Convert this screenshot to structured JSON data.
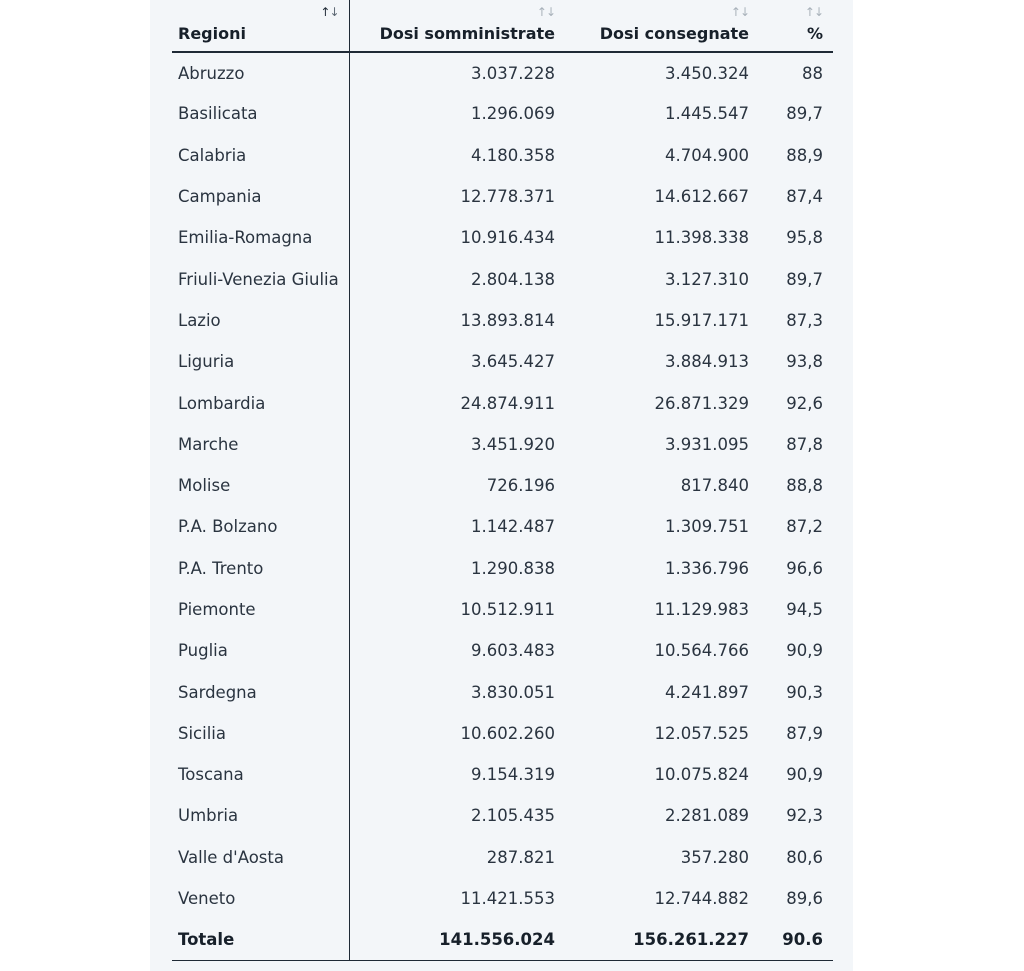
{
  "table": {
    "headers": {
      "region": "Regioni",
      "administered": "Dosi somministrate",
      "delivered": "Dosi consegnate",
      "percent": "%"
    },
    "sort_icon": "↑↓",
    "rows": [
      {
        "region": "Abruzzo",
        "administered": "3.037.228",
        "delivered": "3.450.324",
        "percent": "88"
      },
      {
        "region": "Basilicata",
        "administered": "1.296.069",
        "delivered": "1.445.547",
        "percent": "89,7"
      },
      {
        "region": "Calabria",
        "administered": "4.180.358",
        "delivered": "4.704.900",
        "percent": "88,9"
      },
      {
        "region": "Campania",
        "administered": "12.778.371",
        "delivered": "14.612.667",
        "percent": "87,4"
      },
      {
        "region": "Emilia-Romagna",
        "administered": "10.916.434",
        "delivered": "11.398.338",
        "percent": "95,8"
      },
      {
        "region": "Friuli-Venezia Giulia",
        "administered": "2.804.138",
        "delivered": "3.127.310",
        "percent": "89,7"
      },
      {
        "region": "Lazio",
        "administered": "13.893.814",
        "delivered": "15.917.171",
        "percent": "87,3"
      },
      {
        "region": "Liguria",
        "administered": "3.645.427",
        "delivered": "3.884.913",
        "percent": "93,8"
      },
      {
        "region": "Lombardia",
        "administered": "24.874.911",
        "delivered": "26.871.329",
        "percent": "92,6"
      },
      {
        "region": "Marche",
        "administered": "3.451.920",
        "delivered": "3.931.095",
        "percent": "87,8"
      },
      {
        "region": "Molise",
        "administered": "726.196",
        "delivered": "817.840",
        "percent": "88,8"
      },
      {
        "region": "P.A. Bolzano",
        "administered": "1.142.487",
        "delivered": "1.309.751",
        "percent": "87,2"
      },
      {
        "region": "P.A. Trento",
        "administered": "1.290.838",
        "delivered": "1.336.796",
        "percent": "96,6"
      },
      {
        "region": "Piemonte",
        "administered": "10.512.911",
        "delivered": "11.129.983",
        "percent": "94,5"
      },
      {
        "region": "Puglia",
        "administered": "9.603.483",
        "delivered": "10.564.766",
        "percent": "90,9"
      },
      {
        "region": "Sardegna",
        "administered": "3.830.051",
        "delivered": "4.241.897",
        "percent": "90,3"
      },
      {
        "region": "Sicilia",
        "administered": "10.602.260",
        "delivered": "12.057.525",
        "percent": "87,9"
      },
      {
        "region": "Toscana",
        "administered": "9.154.319",
        "delivered": "10.075.824",
        "percent": "90,9"
      },
      {
        "region": "Umbria",
        "administered": "2.105.435",
        "delivered": "2.281.089",
        "percent": "92,3"
      },
      {
        "region": "Valle d'Aosta",
        "administered": "287.821",
        "delivered": "357.280",
        "percent": "80,6"
      },
      {
        "region": "Veneto",
        "administered": "11.421.553",
        "delivered": "12.744.882",
        "percent": "89,6"
      }
    ],
    "total": {
      "region": "Totale",
      "administered": "141.556.024",
      "delivered": "156.261.227",
      "percent": "90.6"
    }
  }
}
